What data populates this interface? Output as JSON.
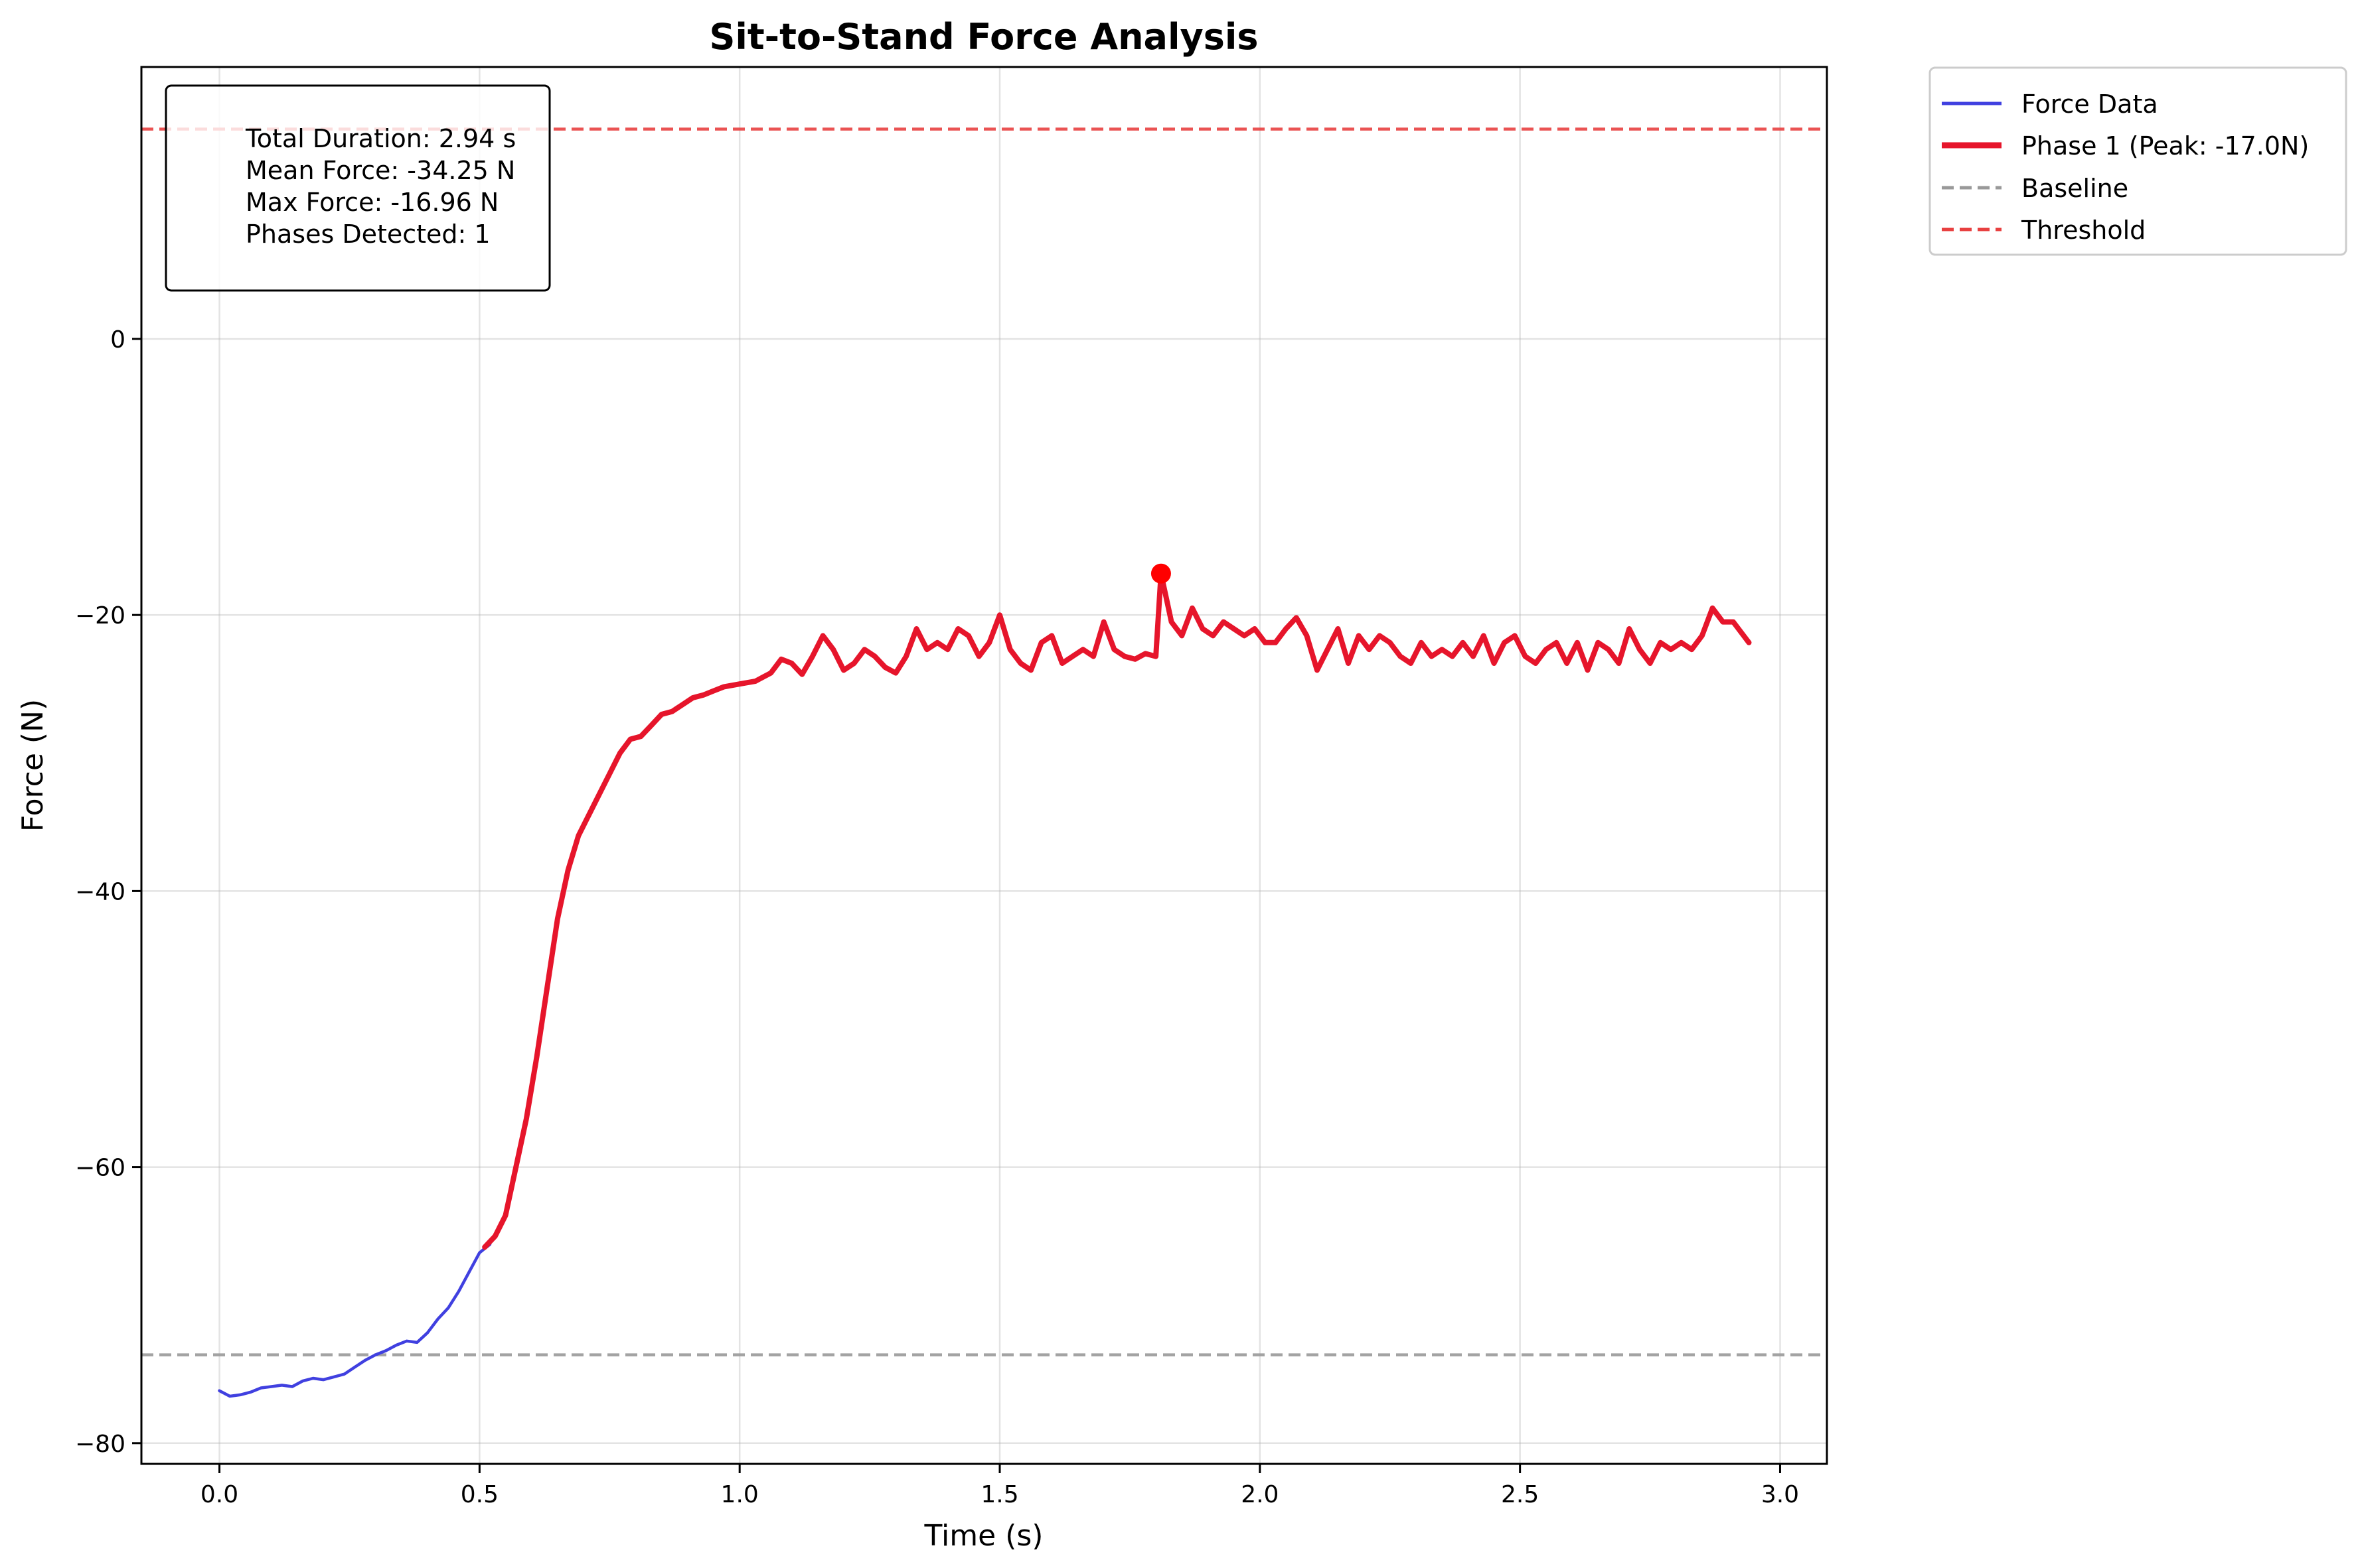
{
  "chart_data": {
    "type": "line",
    "title": "Sit-to-Stand Force Analysis",
    "xlabel": "Time (s)",
    "ylabel": "Force (N)",
    "xlim": [
      -0.15,
      3.09
    ],
    "ylim": [
      -81.5,
      19.7
    ],
    "x_ticks": [
      0.0,
      0.5,
      1.0,
      1.5,
      2.0,
      2.5,
      3.0
    ],
    "x_tick_labels": [
      "0.0",
      "0.5",
      "1.0",
      "1.5",
      "2.0",
      "2.5",
      "3.0"
    ],
    "y_ticks": [
      -80,
      -60,
      -40,
      -20,
      0
    ],
    "y_tick_labels": [
      "−80",
      "−60",
      "−40",
      "−20",
      "0"
    ],
    "grid": true,
    "legend_placement": "outside-top-right",
    "series": [
      {
        "name": "Force Data",
        "color": "#4040e0",
        "style": "solid",
        "x": [
          0.0,
          0.02,
          0.04,
          0.06,
          0.08,
          0.1,
          0.12,
          0.14,
          0.16,
          0.18,
          0.2,
          0.22,
          0.24,
          0.26,
          0.28,
          0.3,
          0.32,
          0.34,
          0.36,
          0.38,
          0.4,
          0.42,
          0.44,
          0.46,
          0.48,
          0.5,
          0.52
        ],
        "y": [
          -76.2,
          -76.6,
          -76.5,
          -76.3,
          -76.0,
          -75.9,
          -75.8,
          -75.9,
          -75.5,
          -75.3,
          -75.4,
          -75.2,
          -75.0,
          -74.5,
          -74.0,
          -73.6,
          -73.3,
          -72.9,
          -72.6,
          -72.7,
          -72.0,
          -71.0,
          -70.2,
          -69.0,
          -67.6,
          -66.2,
          -65.6
        ]
      },
      {
        "name": "Phase 1 (Peak: -17.0N)",
        "color": "#e6152b",
        "style": "thick",
        "x": [
          0.51,
          0.53,
          0.55,
          0.57,
          0.59,
          0.61,
          0.63,
          0.65,
          0.67,
          0.69,
          0.71,
          0.73,
          0.75,
          0.77,
          0.79,
          0.81,
          0.83,
          0.85,
          0.87,
          0.89,
          0.91,
          0.93,
          0.95,
          0.97,
          1.0,
          1.03,
          1.06,
          1.08,
          1.1,
          1.12,
          1.14,
          1.16,
          1.18,
          1.2,
          1.22,
          1.24,
          1.26,
          1.28,
          1.3,
          1.32,
          1.34,
          1.36,
          1.38,
          1.4,
          1.42,
          1.44,
          1.46,
          1.48,
          1.5,
          1.52,
          1.54,
          1.56,
          1.58,
          1.6,
          1.62,
          1.64,
          1.66,
          1.68,
          1.7,
          1.72,
          1.74,
          1.76,
          1.78,
          1.8,
          1.81,
          1.83,
          1.85,
          1.87,
          1.89,
          1.91,
          1.93,
          1.95,
          1.97,
          1.99,
          2.01,
          2.03,
          2.05,
          2.07,
          2.09,
          2.11,
          2.13,
          2.15,
          2.17,
          2.19,
          2.21,
          2.23,
          2.25,
          2.27,
          2.29,
          2.31,
          2.33,
          2.35,
          2.37,
          2.39,
          2.41,
          2.43,
          2.45,
          2.47,
          2.49,
          2.51,
          2.53,
          2.55,
          2.57,
          2.59,
          2.61,
          2.63,
          2.65,
          2.67,
          2.69,
          2.71,
          2.73,
          2.75,
          2.77,
          2.79,
          2.81,
          2.83,
          2.85,
          2.87,
          2.89,
          2.91,
          2.93,
          2.94
        ],
        "y": [
          -65.8,
          -65.0,
          -63.5,
          -60.0,
          -56.5,
          -52.0,
          -47.0,
          -42.0,
          -38.5,
          -36.0,
          -34.5,
          -33.0,
          -31.5,
          -30.0,
          -29.0,
          -28.8,
          -28.0,
          -27.2,
          -27.0,
          -26.5,
          -26.0,
          -25.8,
          -25.5,
          -25.2,
          -25.0,
          -24.8,
          -24.2,
          -23.2,
          -23.5,
          -24.3,
          -23.0,
          -21.5,
          -22.5,
          -24.0,
          -23.5,
          -22.5,
          -23.0,
          -23.8,
          -24.2,
          -23.0,
          -21.0,
          -22.5,
          -22.0,
          -22.5,
          -21.0,
          -21.5,
          -23.0,
          -22.0,
          -20.0,
          -22.5,
          -23.5,
          -24.0,
          -22.0,
          -21.5,
          -23.5,
          -23.0,
          -22.5,
          -23.0,
          -20.5,
          -22.5,
          -23.0,
          -23.2,
          -22.8,
          -23.0,
          -17.0,
          -20.5,
          -21.5,
          -19.5,
          -21.0,
          -21.5,
          -20.5,
          -21.0,
          -21.5,
          -21.0,
          -22.0,
          -22.0,
          -21.0,
          -20.2,
          -21.5,
          -24.0,
          -22.5,
          -21.0,
          -23.5,
          -21.5,
          -22.5,
          -21.5,
          -22.0,
          -23.0,
          -23.5,
          -22.0,
          -23.0,
          -22.5,
          -23.0,
          -22.0,
          -23.0,
          -21.5,
          -23.5,
          -22.0,
          -21.5,
          -23.0,
          -23.5,
          -22.5,
          -22.0,
          -23.5,
          -22.0,
          -24.0,
          -22.0,
          -22.5,
          -23.5,
          -21.0,
          -22.5,
          -23.5,
          -22.0,
          -22.5,
          -22.0,
          -22.5,
          -21.5,
          -19.5,
          -20.5,
          -20.5,
          -21.5,
          -22.0
        ]
      }
    ],
    "reference_lines": [
      {
        "name": "Baseline",
        "y": -73.6,
        "color": "#999999",
        "style": "dashed"
      },
      {
        "name": "Threshold",
        "y": 15.2,
        "color": "#e84040",
        "style": "dashed"
      }
    ],
    "peak_marker": {
      "x": 1.81,
      "y": -17.0,
      "color": "#ff0000"
    },
    "stats_box": [
      "Total Duration: 2.94 s",
      "Mean Force: -34.25 N",
      "Max Force: -16.96 N",
      "Phases Detected: 1"
    ],
    "legend": [
      {
        "label": "Force Data",
        "color": "#4040e0",
        "style": "solid"
      },
      {
        "label": "Phase 1 (Peak: -17.0N)",
        "color": "#e6152b",
        "style": "thick"
      },
      {
        "label": "Baseline",
        "color": "#999999",
        "style": "dashed"
      },
      {
        "label": "Threshold",
        "color": "#e84040",
        "style": "dashed"
      }
    ]
  }
}
